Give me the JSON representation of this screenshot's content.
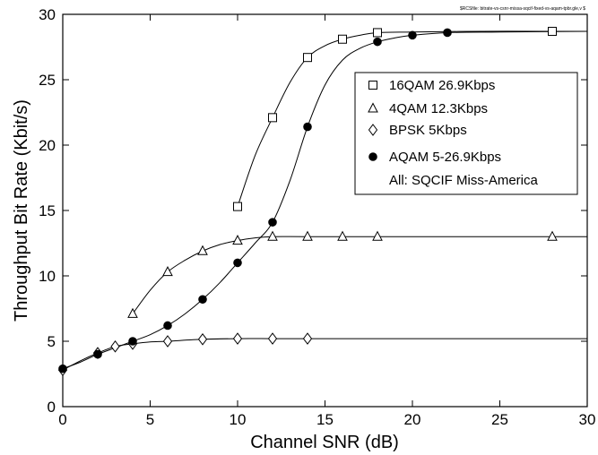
{
  "chart_data": {
    "type": "line",
    "rcs_note": "$RCSfile: bitrate-vs-csnr-missa-sqcif-fixed-vs-aqam-tpbr.gle,v $",
    "xlabel": "Channel SNR (dB)",
    "ylabel": "Throughput Bit Rate (Kbit/s)",
    "xlim": [
      0,
      30
    ],
    "ylim": [
      0,
      30
    ],
    "xticks": [
      0,
      5,
      10,
      15,
      20,
      25,
      30
    ],
    "yticks": [
      0,
      5,
      10,
      15,
      20,
      25,
      30
    ],
    "grid": false,
    "legend_position": "top-right",
    "legend_note": "All: SQCIF Miss-America",
    "series": [
      {
        "name": "16QAM 26.9Kbps",
        "marker": "square",
        "x": [
          10,
          12,
          14,
          16,
          18,
          28
        ],
        "y": [
          15.3,
          22.1,
          26.7,
          28.1,
          28.6,
          28.7
        ],
        "curve_x": [
          10,
          11,
          12,
          13,
          14,
          15,
          16,
          17,
          18,
          20,
          24,
          28,
          30
        ],
        "curve_y": [
          15.3,
          19.2,
          22.1,
          24.8,
          26.7,
          27.6,
          28.1,
          28.4,
          28.6,
          28.65,
          28.7,
          28.7,
          28.7
        ]
      },
      {
        "name": "4QAM 12.3Kbps",
        "marker": "triangle",
        "x": [
          4,
          6,
          8,
          10,
          12,
          14,
          16,
          18,
          28
        ],
        "y": [
          7.1,
          10.3,
          11.9,
          12.7,
          13.0,
          13.0,
          13.0,
          13.0,
          13.0
        ],
        "curve_x": [
          4,
          5,
          6,
          7,
          8,
          9,
          10,
          11,
          12,
          14,
          18,
          24,
          30
        ],
        "curve_y": [
          7.1,
          8.9,
          10.3,
          11.2,
          11.9,
          12.4,
          12.7,
          12.9,
          13.0,
          13.0,
          13.0,
          13.0,
          13.0
        ]
      },
      {
        "name": "BPSK 5Kbps",
        "marker": "diamond",
        "x": [
          0,
          2,
          3,
          4,
          6,
          8,
          10,
          12,
          14
        ],
        "y": [
          2.8,
          4.1,
          4.6,
          4.8,
          5.0,
          5.15,
          5.2,
          5.2,
          5.2
        ],
        "curve_x": [
          0,
          1,
          2,
          3,
          4,
          5,
          6,
          8,
          10,
          12,
          14,
          20,
          30
        ],
        "curve_y": [
          2.8,
          3.5,
          4.1,
          4.6,
          4.8,
          4.95,
          5.0,
          5.15,
          5.2,
          5.2,
          5.2,
          5.2,
          5.2
        ]
      },
      {
        "name": "AQAM 5-26.9Kbps",
        "marker": "filled-circle",
        "x": [
          0,
          2,
          4,
          6,
          8,
          10,
          12,
          14,
          18,
          20,
          22
        ],
        "y": [
          2.9,
          4.0,
          5.0,
          6.2,
          8.2,
          11.0,
          14.1,
          21.4,
          27.9,
          28.4,
          28.6
        ],
        "curve_x": [
          0,
          1,
          2,
          3,
          4,
          5,
          6,
          7,
          8,
          9,
          10,
          11,
          12,
          13,
          14,
          15,
          16,
          17,
          18,
          19,
          20,
          22,
          25,
          30
        ],
        "curve_y": [
          2.9,
          3.4,
          4.0,
          4.5,
          5.0,
          5.5,
          6.2,
          7.1,
          8.2,
          9.5,
          11.0,
          12.5,
          14.1,
          17.3,
          21.4,
          24.6,
          26.5,
          27.4,
          27.9,
          28.2,
          28.4,
          28.6,
          28.65,
          28.7
        ]
      }
    ]
  }
}
